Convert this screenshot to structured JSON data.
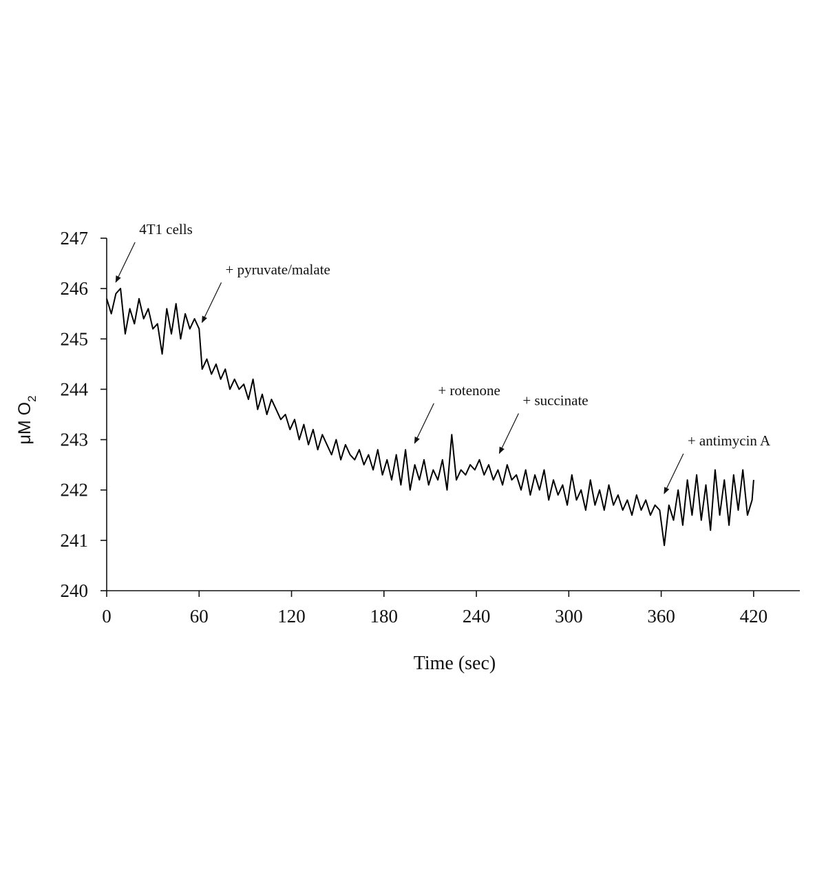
{
  "chart_data": {
    "type": "line",
    "xlabel": "Time (sec)",
    "ylabel": "μM O",
    "ylabel_subscript": "2",
    "xlim": [
      0,
      450
    ],
    "ylim": [
      240,
      247
    ],
    "x_ticks": [
      "0",
      "60",
      "120",
      "180",
      "240",
      "300",
      "360",
      "420"
    ],
    "y_ticks": [
      "240",
      "241",
      "242",
      "243",
      "244",
      "245",
      "246",
      "247"
    ],
    "series": [
      {
        "color": "#000000",
        "x": [
          0,
          3,
          6,
          9,
          12,
          15,
          18,
          21,
          24,
          27,
          30,
          33,
          36,
          39,
          42,
          45,
          48,
          51,
          54,
          57,
          60,
          62,
          65,
          68,
          71,
          74,
          77,
          80,
          83,
          86,
          89,
          92,
          95,
          98,
          101,
          104,
          107,
          110,
          113,
          116,
          119,
          122,
          125,
          128,
          131,
          134,
          137,
          140,
          143,
          146,
          149,
          152,
          155,
          158,
          161,
          164,
          167,
          170,
          173,
          176,
          179,
          182,
          185,
          188,
          191,
          194,
          197,
          200,
          203,
          206,
          209,
          212,
          215,
          218,
          221,
          224,
          227,
          230,
          233,
          236,
          239,
          242,
          245,
          248,
          251,
          254,
          257,
          260,
          263,
          266,
          269,
          272,
          275,
          278,
          281,
          284,
          287,
          290,
          293,
          296,
          299,
          302,
          305,
          308,
          311,
          314,
          317,
          320,
          323,
          326,
          329,
          332,
          335,
          338,
          341,
          344,
          347,
          350,
          353,
          356,
          359,
          362,
          365,
          368,
          371,
          374,
          377,
          380,
          383,
          386,
          389,
          392,
          395,
          398,
          401,
          404,
          407,
          410,
          413,
          416,
          419,
          420
        ],
        "y": [
          245.8,
          245.5,
          245.9,
          246.0,
          245.1,
          245.6,
          245.3,
          245.8,
          245.4,
          245.6,
          245.2,
          245.3,
          244.7,
          245.6,
          245.1,
          245.7,
          245.0,
          245.5,
          245.2,
          245.4,
          245.2,
          244.4,
          244.6,
          244.3,
          244.5,
          244.2,
          244.4,
          244.0,
          244.2,
          244.0,
          244.1,
          243.8,
          244.2,
          243.6,
          243.9,
          243.5,
          243.8,
          243.6,
          243.4,
          243.5,
          243.2,
          243.4,
          243.0,
          243.3,
          242.9,
          243.2,
          242.8,
          243.1,
          242.9,
          242.7,
          243.0,
          242.6,
          242.9,
          242.7,
          242.6,
          242.8,
          242.5,
          242.7,
          242.4,
          242.8,
          242.3,
          242.6,
          242.2,
          242.7,
          242.1,
          242.8,
          242.0,
          242.5,
          242.2,
          242.6,
          242.1,
          242.4,
          242.2,
          242.6,
          242.0,
          243.1,
          242.2,
          242.4,
          242.3,
          242.5,
          242.4,
          242.6,
          242.3,
          242.5,
          242.2,
          242.4,
          242.1,
          242.5,
          242.2,
          242.3,
          242.0,
          242.4,
          241.9,
          242.3,
          242.0,
          242.4,
          241.8,
          242.2,
          241.9,
          242.1,
          241.7,
          242.3,
          241.8,
          242.0,
          241.6,
          242.2,
          241.7,
          242.0,
          241.6,
          242.1,
          241.7,
          241.9,
          241.6,
          241.8,
          241.5,
          241.9,
          241.6,
          241.8,
          241.5,
          241.7,
          241.6,
          240.9,
          241.7,
          241.4,
          242.0,
          241.3,
          242.2,
          241.5,
          242.3,
          241.4,
          242.1,
          241.2,
          242.4,
          241.5,
          242.2,
          241.3,
          242.3,
          241.6,
          242.4,
          241.5,
          241.8,
          242.2
        ]
      }
    ],
    "annotations": [
      {
        "text": "4T1 cells",
        "x": 5,
        "y": 246.1
      },
      {
        "text": "+ pyruvate/malate",
        "x": 61,
        "y": 245.3
      },
      {
        "text": "+ rotenone",
        "x": 199,
        "y": 242.9
      },
      {
        "text": "+ succinate",
        "x": 254,
        "y": 242.7
      },
      {
        "text": "+ antimycin A",
        "x": 361,
        "y": 241.9
      }
    ]
  }
}
